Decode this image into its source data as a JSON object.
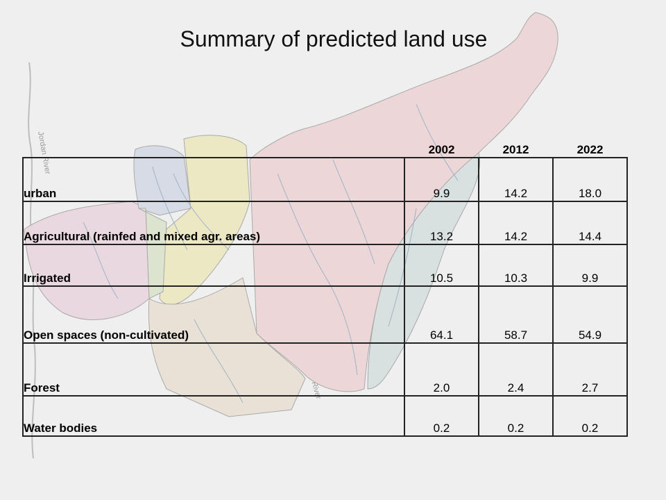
{
  "title": "Summary of predicted land use",
  "map": {
    "river_label_1": "Jordan River",
    "river_label_2": "Jordan River",
    "colors": {
      "background": "#efefef",
      "large_basin": "#ecd6d8",
      "east_strip": "#d9e0e0",
      "sub_yellow": "#ece8c4",
      "sub_green": "#dce4cf",
      "sub_blue": "#d7dbe6",
      "sub_pink": "#ead8e0",
      "south_area": "#e9e1d6",
      "streams": "#9fb3c4",
      "borders": "#a9a9a9"
    }
  },
  "table": {
    "headers": [
      "",
      "2002",
      "2012",
      "2022"
    ],
    "rows": [
      {
        "category": "urban",
        "values": [
          "9.9",
          "14.2",
          "18.0"
        ]
      },
      {
        "category": "Agricultural (rainfed and mixed agr. areas)",
        "values": [
          "13.2",
          "14.2",
          "14.4"
        ]
      },
      {
        "category": "Irrigated",
        "values": [
          "10.5",
          "10.3",
          "9.9"
        ]
      },
      {
        "category": "Open spaces (non-cultivated)",
        "values": [
          "64.1",
          "58.7",
          "54.9"
        ]
      },
      {
        "category": "Forest",
        "values": [
          "2.0",
          "2.4",
          "2.7"
        ]
      },
      {
        "category": "Water bodies",
        "values": [
          "0.2",
          "0.2",
          "0.2"
        ]
      }
    ]
  }
}
